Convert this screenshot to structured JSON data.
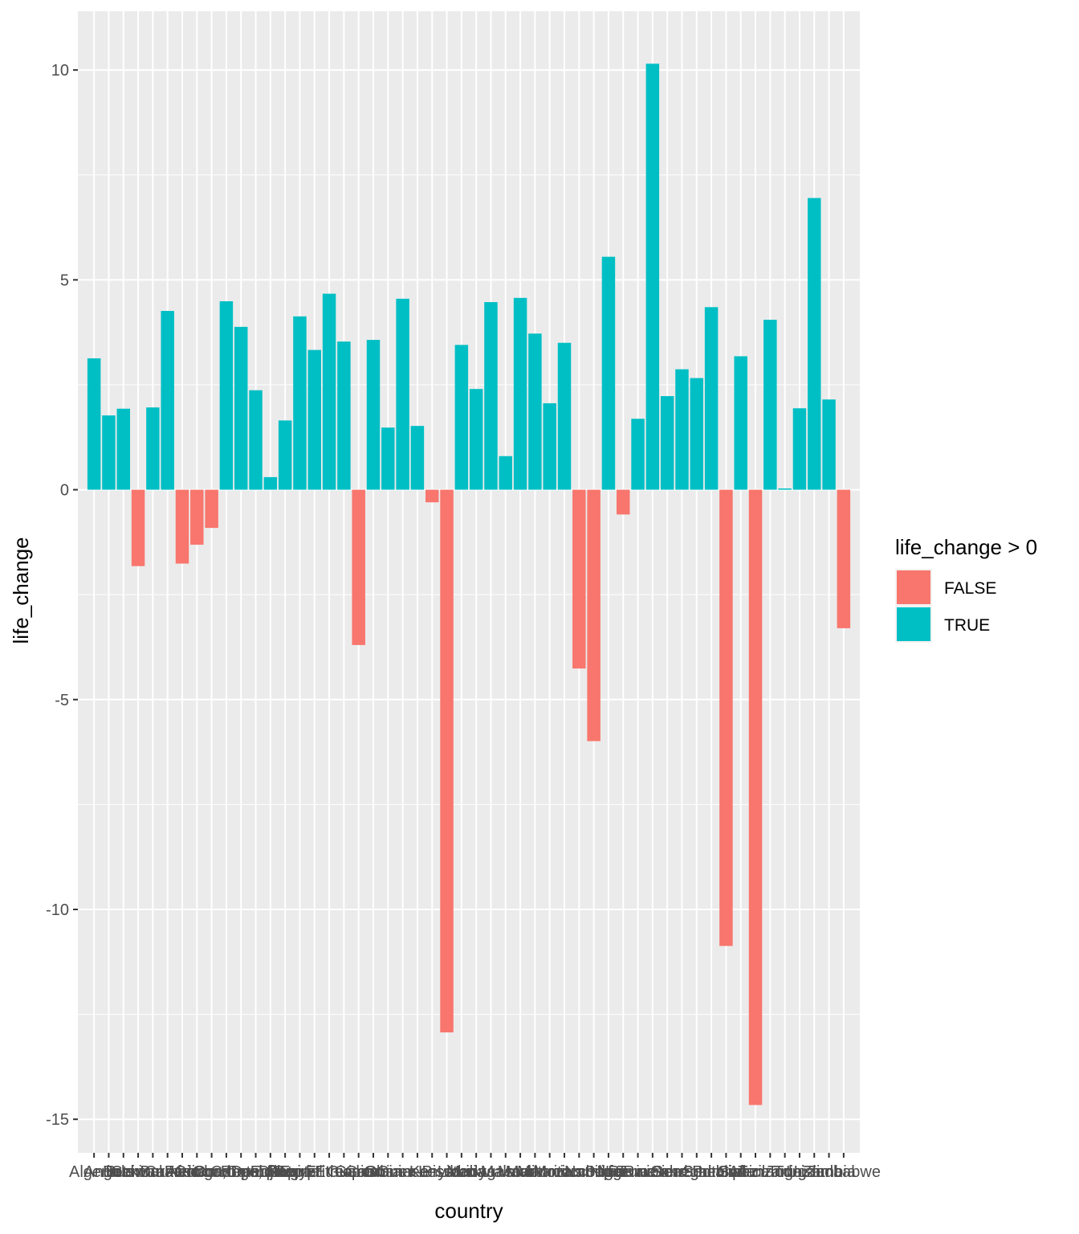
{
  "chart_data": {
    "type": "bar",
    "title": "",
    "xlabel": "country",
    "ylabel": "life_change",
    "ylim": [
      -15.8,
      11.4
    ],
    "yticks": [
      -15,
      -10,
      -5,
      0,
      5,
      10
    ],
    "ytick_labels": [
      "-15",
      "-10",
      "-5",
      "0",
      "5",
      "10"
    ],
    "legend": {
      "title": "life_change > 0",
      "position": "right",
      "entries": [
        {
          "label": "FALSE",
          "color": "#F8766D"
        },
        {
          "label": "TRUE",
          "color": "#00BFC4"
        }
      ]
    },
    "colors": {
      "negative": "#F8766D",
      "positive": "#00BFC4",
      "panel": "#EBEBEB",
      "grid": "#FFFFFF"
    },
    "categories": [
      "Algeria",
      "Angola",
      "Benin",
      "Botswana",
      "Burkina Faso",
      "Burundi",
      "Cameroon",
      "Central African Republic",
      "Chad",
      "Comoros",
      "Congo, Dem. Rep.",
      "Congo, Rep.",
      "Cote d'Ivoire",
      "Djibouti",
      "Egypt",
      "Equatorial Guinea",
      "Eritrea",
      "Ethiopia",
      "Gabon",
      "Gambia",
      "Ghana",
      "Guinea",
      "Guinea-Bissau",
      "Kenya",
      "Lesotho",
      "Liberia",
      "Libya",
      "Madagascar",
      "Malawi",
      "Mali",
      "Mauritania",
      "Mauritius",
      "Morocco",
      "Mozambique",
      "Namibia",
      "Niger",
      "Nigeria",
      "Reunion",
      "Rwanda",
      "Sao Tome and Principe",
      "Senegal",
      "Sierra Leone",
      "Somalia",
      "South Africa",
      "Sudan",
      "Swaziland",
      "Tanzania",
      "Togo",
      "Tunisia",
      "Uganda",
      "Zambia",
      "Zimbabwe"
    ],
    "values": [
      3.13,
      1.77,
      1.93,
      -1.82,
      1.96,
      4.26,
      -1.76,
      -1.31,
      -0.91,
      4.49,
      3.88,
      2.37,
      0.3,
      1.65,
      4.13,
      3.33,
      4.67,
      3.53,
      -3.7,
      3.57,
      1.48,
      4.55,
      1.52,
      -0.3,
      -12.93,
      3.45,
      2.4,
      4.47,
      0.8,
      4.57,
      3.72,
      2.06,
      3.5,
      -4.26,
      -5.99,
      5.55,
      -0.59,
      1.69,
      10.15,
      2.23,
      2.87,
      2.66,
      4.35,
      -10.87,
      3.18,
      -14.66,
      4.05,
      0.03,
      1.94,
      6.95,
      2.15,
      -3.3
    ]
  }
}
